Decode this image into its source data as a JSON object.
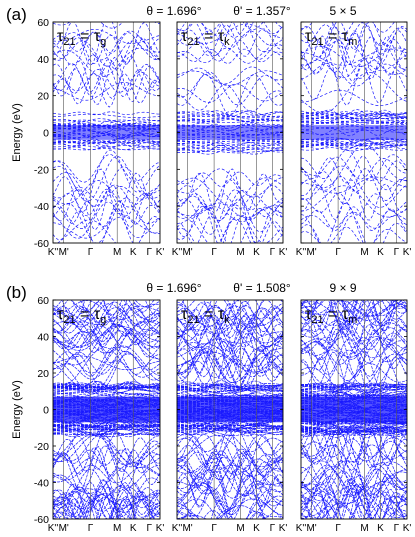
{
  "chart_data": [
    {
      "type": "line",
      "panel_letter": "(a)",
      "title_parts": [
        "θ = 1.696°",
        "θ' = 1.357°",
        "5 × 5"
      ],
      "ylabel": "Energy (eV)",
      "ylim": [
        -60,
        60
      ],
      "yticks": [
        60,
        40,
        20,
        0,
        -20,
        -40,
        -60
      ],
      "grid": false,
      "xtick_labels": [
        "K''",
        "M'",
        "Γ",
        "M",
        "K",
        "Γ",
        "K'"
      ],
      "xtick_positions": [
        0,
        0.1,
        0.35,
        0.6,
        0.75,
        0.9,
        1.0
      ],
      "band_density": "sparse",
      "subplots": [
        {
          "label_main": "τ",
          "label_sub": "21",
          "label_eq": " = ",
          "label_rhs": "τ",
          "label_rhs_sub": "g"
        },
        {
          "label_main": "τ",
          "label_sub": "21",
          "label_eq": " = ",
          "label_rhs": "τ",
          "label_rhs_sub": "k"
        },
        {
          "label_main": "τ",
          "label_sub": "21",
          "label_eq": " = ",
          "label_rhs": "τ",
          "label_rhs_sub": "m"
        }
      ]
    },
    {
      "type": "line",
      "panel_letter": "(b)",
      "title_parts": [
        "θ = 1.696°",
        "θ' = 1.508°",
        "9 × 9"
      ],
      "ylabel": "Energy (eV)",
      "ylim": [
        -60,
        60
      ],
      "yticks": [
        60,
        40,
        20,
        0,
        -20,
        -40,
        -60
      ],
      "grid": false,
      "xtick_labels": [
        "K''",
        "M'",
        "Γ",
        "M",
        "K",
        "Γ",
        "K'"
      ],
      "xtick_positions": [
        0,
        0.1,
        0.35,
        0.6,
        0.75,
        0.9,
        1.0
      ],
      "band_density": "dense",
      "subplots": [
        {
          "label_main": "τ",
          "label_sub": "21",
          "label_eq": " = ",
          "label_rhs": "τ",
          "label_rhs_sub": "g"
        },
        {
          "label_main": "τ",
          "label_sub": "21",
          "label_eq": " = ",
          "label_rhs": "τ",
          "label_rhs_sub": "k"
        },
        {
          "label_main": "τ",
          "label_sub": "21",
          "label_eq": " = ",
          "label_rhs": "τ",
          "label_rhs_sub": "m"
        }
      ]
    }
  ],
  "colors": {
    "bands": "#1a1aff",
    "axes": "#000000",
    "dividers": "#000000",
    "vlines": "#999999"
  }
}
